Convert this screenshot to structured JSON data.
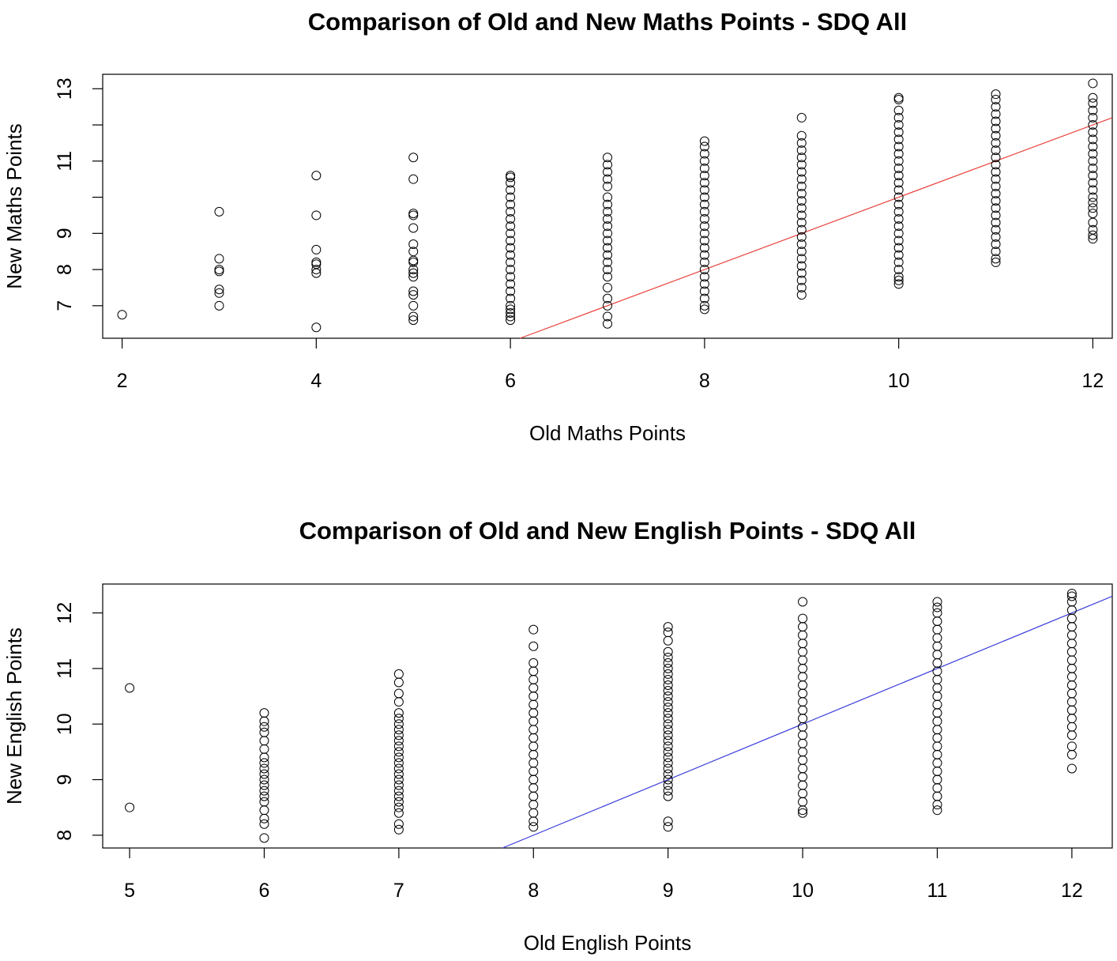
{
  "chart_data": [
    {
      "type": "scatter",
      "title": "Comparison of Old and New Maths Points - SDQ All",
      "xlabel": "Old Maths Points",
      "ylabel": "New Maths Points",
      "xlim": [
        1.8,
        12.2
      ],
      "ylim": [
        6.1,
        13.4
      ],
      "xticks": [
        2,
        4,
        6,
        8,
        10,
        12
      ],
      "yticks": [
        7,
        8,
        9,
        10,
        11,
        12,
        13
      ],
      "ytick_labels": [
        "7",
        "8",
        "9",
        "",
        "11",
        "",
        "13"
      ],
      "reference_line": {
        "slope": 1,
        "intercept": 0,
        "color": "#e8403a"
      },
      "point_style": "open-circle",
      "grid": false,
      "points": [
        {
          "x": 2,
          "y": [
            6.75
          ]
        },
        {
          "x": 3,
          "y": [
            7.0,
            7.35,
            7.45,
            7.95,
            8.0,
            8.3,
            9.6
          ]
        },
        {
          "x": 4,
          "y": [
            6.4,
            7.9,
            8.0,
            8.15,
            8.2,
            8.55,
            9.5,
            10.6
          ]
        },
        {
          "x": 5,
          "y": [
            6.6,
            6.7,
            7.0,
            7.3,
            7.4,
            7.8,
            7.9,
            8.0,
            8.2,
            8.25,
            8.5,
            8.7,
            9.15,
            9.5,
            9.55,
            10.5,
            11.1
          ]
        },
        {
          "x": 6,
          "y": [
            6.6,
            6.7,
            6.8,
            6.9,
            7.0,
            7.2,
            7.4,
            7.6,
            7.8,
            8.0,
            8.2,
            8.4,
            8.6,
            8.8,
            9.0,
            9.2,
            9.4,
            9.6,
            9.8,
            10.0,
            10.2,
            10.4,
            10.55,
            10.6
          ]
        },
        {
          "x": 7,
          "y": [
            6.5,
            6.7,
            7.0,
            7.2,
            7.5,
            7.8,
            8.0,
            8.2,
            8.4,
            8.6,
            8.8,
            9.0,
            9.2,
            9.4,
            9.6,
            9.8,
            10.0,
            10.3,
            10.5,
            10.7,
            10.9,
            11.1
          ]
        },
        {
          "x": 8,
          "y": [
            6.9,
            7.0,
            7.2,
            7.4,
            7.6,
            7.8,
            8.0,
            8.2,
            8.4,
            8.6,
            8.8,
            9.0,
            9.2,
            9.4,
            9.6,
            9.8,
            10.0,
            10.2,
            10.4,
            10.6,
            10.8,
            11.0,
            11.2,
            11.4,
            11.55
          ]
        },
        {
          "x": 9,
          "y": [
            7.3,
            7.5,
            7.7,
            7.9,
            8.1,
            8.3,
            8.5,
            8.7,
            8.9,
            9.1,
            9.3,
            9.5,
            9.7,
            9.9,
            10.1,
            10.3,
            10.5,
            10.7,
            10.9,
            11.1,
            11.3,
            11.5,
            11.7,
            12.2
          ]
        },
        {
          "x": 10,
          "y": [
            7.6,
            7.7,
            7.8,
            8.0,
            8.2,
            8.4,
            8.6,
            8.8,
            9.0,
            9.2,
            9.4,
            9.6,
            9.8,
            10.0,
            10.2,
            10.4,
            10.6,
            10.8,
            11.0,
            11.2,
            11.4,
            11.6,
            11.8,
            12.0,
            12.2,
            12.4,
            12.7,
            12.75
          ]
        },
        {
          "x": 11,
          "y": [
            8.2,
            8.3,
            8.5,
            8.7,
            8.9,
            9.1,
            9.3,
            9.5,
            9.7,
            9.9,
            10.1,
            10.3,
            10.5,
            10.7,
            10.9,
            11.1,
            11.3,
            11.5,
            11.7,
            11.9,
            12.1,
            12.3,
            12.5,
            12.7,
            12.85
          ]
        },
        {
          "x": 12,
          "y": [
            8.85,
            8.95,
            9.1,
            9.3,
            9.55,
            9.7,
            9.85,
            10.0,
            10.2,
            10.4,
            10.6,
            10.8,
            11.0,
            11.2,
            11.4,
            11.6,
            11.8,
            12.0,
            12.2,
            12.4,
            12.6,
            12.75,
            13.15
          ]
        }
      ]
    },
    {
      "type": "scatter",
      "title": "Comparison of Old and New English Points - SDQ All",
      "xlabel": "Old English Points",
      "ylabel": "New English Points",
      "xlim": [
        4.8,
        12.3
      ],
      "ylim": [
        7.77,
        12.52
      ],
      "xticks": [
        5,
        6,
        7,
        8,
        9,
        10,
        11,
        12
      ],
      "yticks": [
        8,
        9,
        10,
        11,
        12
      ],
      "ytick_labels": [
        "8",
        "9",
        "10",
        "11",
        "12"
      ],
      "reference_line": {
        "slope": 1,
        "intercept": 0,
        "color": "#3b3bdc"
      },
      "point_style": "open-circle",
      "grid": false,
      "points": [
        {
          "x": 5,
          "y": [
            8.5,
            10.65
          ]
        },
        {
          "x": 6,
          "y": [
            7.95,
            8.2,
            8.3,
            8.45,
            8.6,
            8.7,
            8.8,
            8.9,
            9.0,
            9.1,
            9.2,
            9.3,
            9.4,
            9.55,
            9.7,
            9.85,
            9.95,
            10.05,
            10.2
          ]
        },
        {
          "x": 7,
          "y": [
            8.1,
            8.2,
            8.4,
            8.5,
            8.6,
            8.7,
            8.8,
            8.9,
            9.0,
            9.1,
            9.2,
            9.3,
            9.4,
            9.5,
            9.6,
            9.7,
            9.8,
            9.9,
            10.0,
            10.1,
            10.2,
            10.4,
            10.55,
            10.75,
            10.9
          ]
        },
        {
          "x": 8,
          "y": [
            8.15,
            8.25,
            8.4,
            8.55,
            8.7,
            8.85,
            9.0,
            9.15,
            9.3,
            9.45,
            9.6,
            9.75,
            9.9,
            10.05,
            10.2,
            10.35,
            10.5,
            10.65,
            10.8,
            10.95,
            11.1,
            11.4,
            11.7
          ]
        },
        {
          "x": 9,
          "y": [
            8.15,
            8.25,
            8.7,
            8.8,
            8.9,
            9.0,
            9.1,
            9.2,
            9.3,
            9.4,
            9.5,
            9.6,
            9.7,
            9.8,
            9.9,
            10.0,
            10.1,
            10.2,
            10.3,
            10.4,
            10.5,
            10.6,
            10.7,
            10.8,
            10.9,
            11.0,
            11.1,
            11.2,
            11.3,
            11.5,
            11.65,
            11.75
          ]
        },
        {
          "x": 10,
          "y": [
            8.4,
            8.45,
            8.6,
            8.75,
            8.9,
            9.05,
            9.2,
            9.35,
            9.5,
            9.65,
            9.8,
            9.95,
            10.1,
            10.25,
            10.4,
            10.55,
            10.7,
            10.85,
            11.0,
            11.15,
            11.3,
            11.45,
            11.6,
            11.75,
            11.9,
            12.2
          ]
        },
        {
          "x": 11,
          "y": [
            8.45,
            8.55,
            8.7,
            8.85,
            9.0,
            9.15,
            9.3,
            9.45,
            9.6,
            9.75,
            9.9,
            10.05,
            10.2,
            10.35,
            10.5,
            10.65,
            10.8,
            10.95,
            11.1,
            11.25,
            11.4,
            11.55,
            11.7,
            11.85,
            12.0,
            12.1,
            12.2
          ]
        },
        {
          "x": 12,
          "y": [
            9.2,
            9.45,
            9.6,
            9.8,
            9.95,
            10.1,
            10.25,
            10.4,
            10.55,
            10.7,
            10.85,
            11.0,
            11.15,
            11.3,
            11.45,
            11.6,
            11.75,
            11.9,
            12.05,
            12.2,
            12.3,
            12.35
          ]
        }
      ]
    }
  ]
}
